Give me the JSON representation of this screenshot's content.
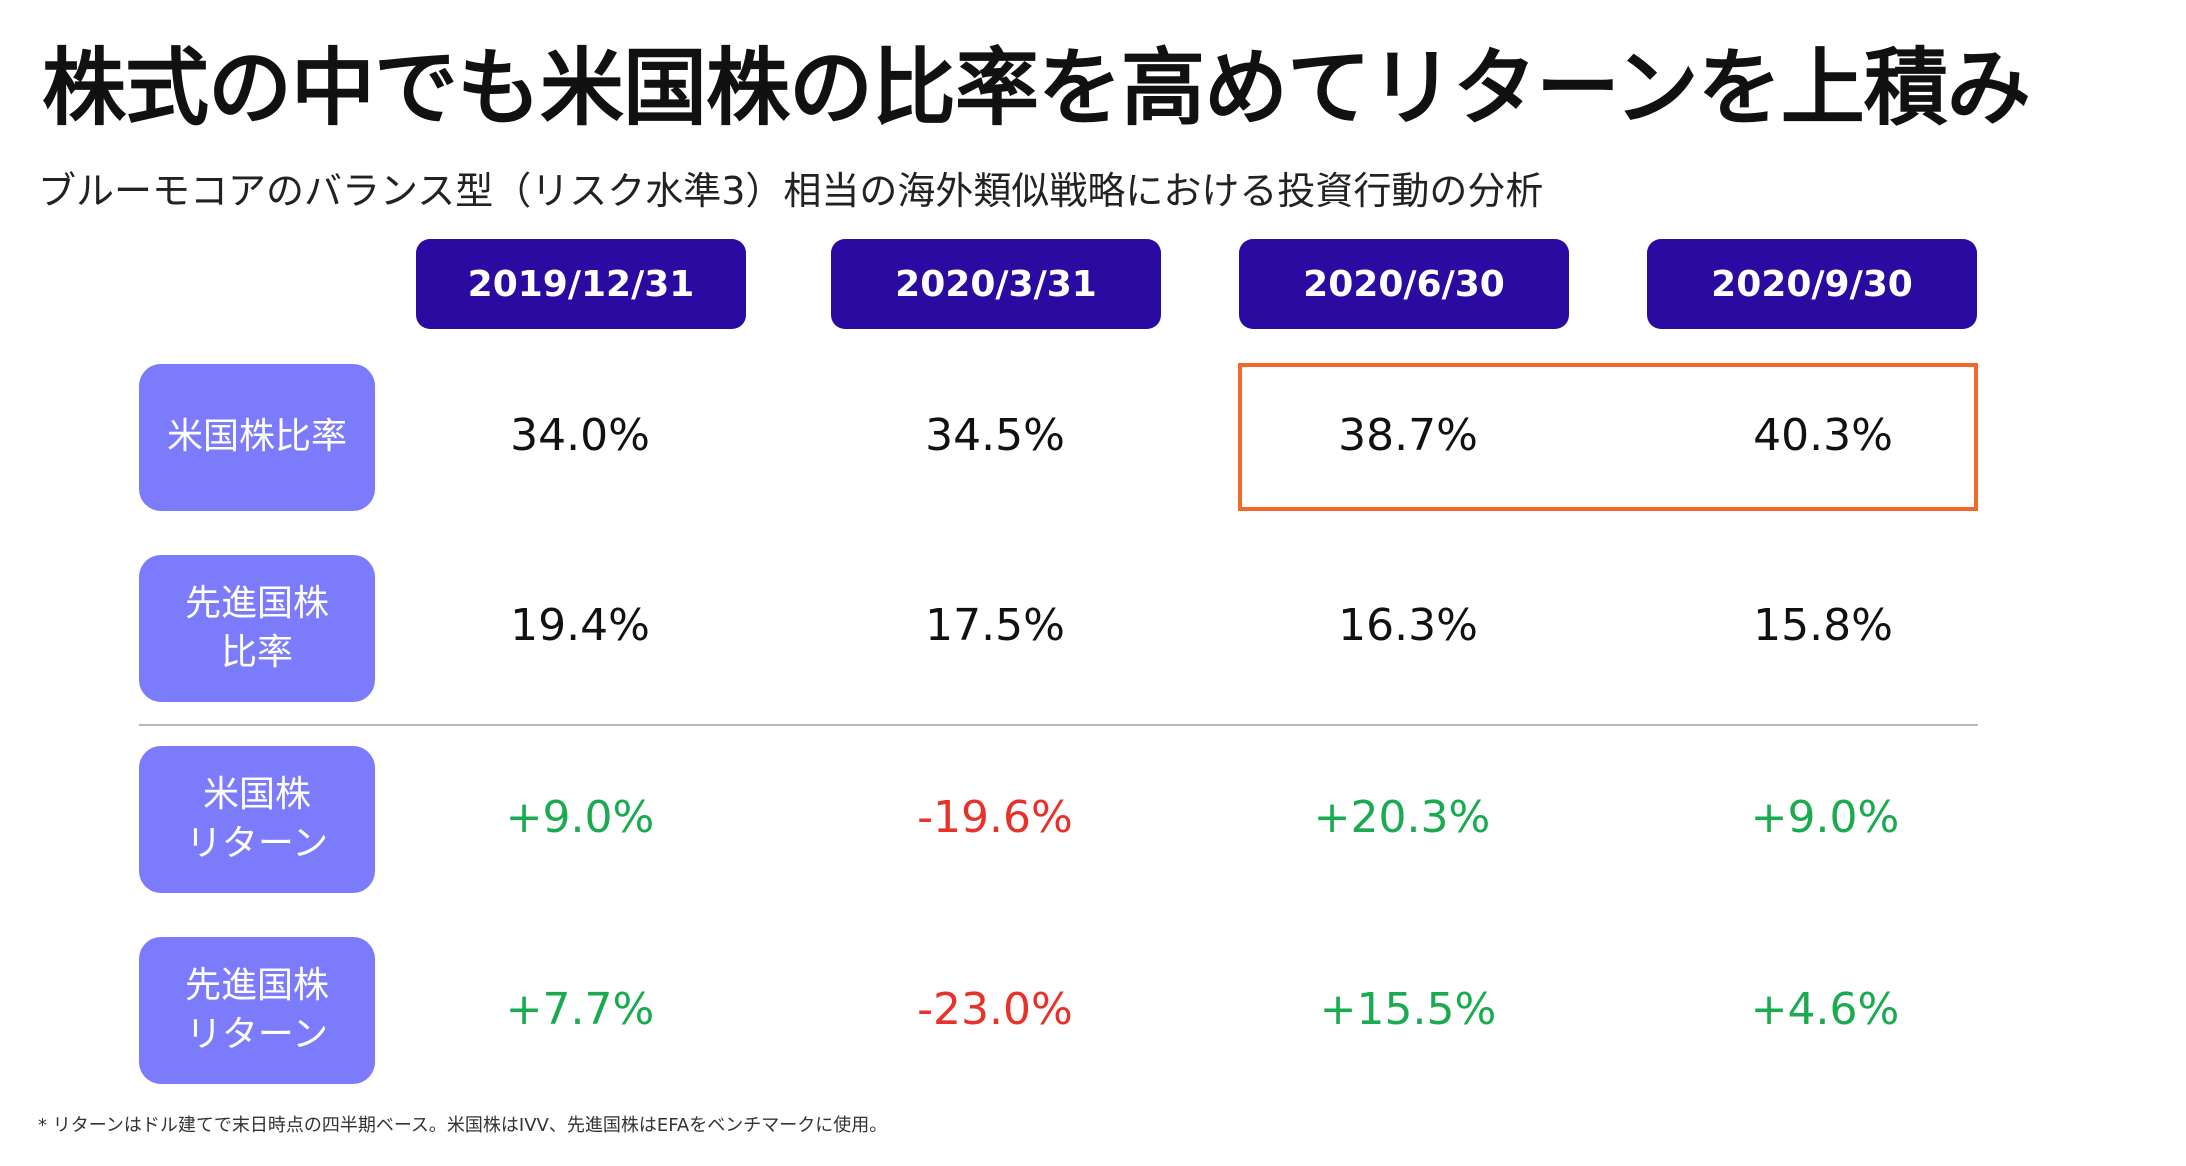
{
  "title": "株式の中でも米国株の比率を高めてリターンを上積み",
  "subtitle": "ブルーモコアのバランス型（リスク水準3）相当の海外類似戦略における投資行動の分析",
  "columns": [
    "2019/12/31",
    "2020/3/31",
    "2020/6/30",
    "2020/9/30"
  ],
  "rows": [
    {
      "label": "米国株比率",
      "values": [
        "34.0%",
        "34.5%",
        "38.7%",
        "40.3%"
      ]
    },
    {
      "label": "先進国株\n比率",
      "values": [
        "19.4%",
        "17.5%",
        "16.3%",
        "15.8%"
      ]
    },
    {
      "label": "米国株\nリターン",
      "values": [
        "+9.0%",
        "-19.6%",
        "+20.3%",
        "+9.0%"
      ]
    },
    {
      "label": "先進国株\nリターン",
      "values": [
        "+7.7%",
        "-23.0%",
        "+15.5%",
        "+4.6%"
      ]
    }
  ],
  "footnote": "* リターンはドル建てで末日時点の四半期ベース。米国株はIVV、先進国株はEFAをベンチマークに使用。",
  "colors": {
    "header_bg": "#2a0aa0",
    "label_bg": "#7c7bfc",
    "positive": "#1aaa50",
    "negative": "#e8312a",
    "highlight": "#f06a2a"
  }
}
